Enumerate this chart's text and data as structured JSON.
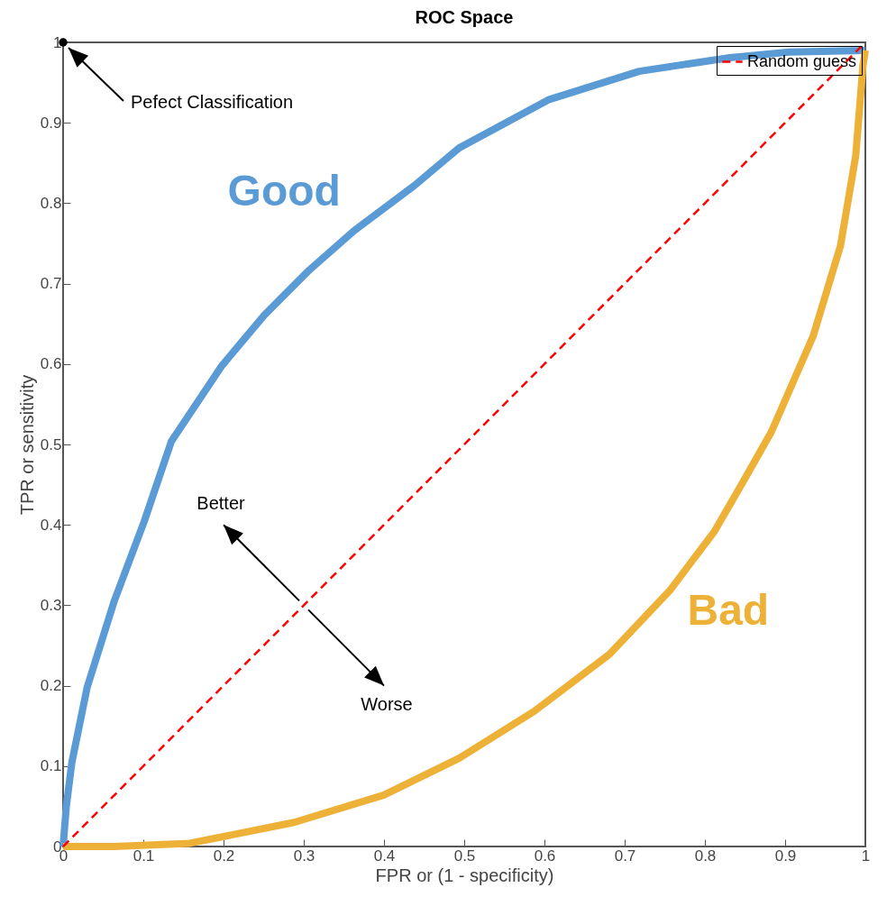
{
  "chart_data": {
    "type": "line",
    "title": "ROC Space",
    "xlabel": "FPR or (1 - specificity)",
    "ylabel": "TPR or sensitivity",
    "xlim": [
      0,
      1
    ],
    "ylim": [
      0,
      1
    ],
    "xticks": [
      0,
      0.1,
      0.2,
      0.3,
      0.4,
      0.5,
      0.6,
      0.7,
      0.8,
      0.9,
      1
    ],
    "yticks": [
      0,
      0.1,
      0.2,
      0.3,
      0.4,
      0.5,
      0.6,
      0.7,
      0.8,
      0.9,
      1
    ],
    "grid": false,
    "legend": "top right",
    "marker": "none",
    "series": [
      {
        "name": "Good",
        "color": "#5b9bd5",
        "line_style": "solid",
        "x": [
          0,
          0.004,
          0.011,
          0.03,
          0.064,
          0.101,
          0.135,
          0.198,
          0.251,
          0.307,
          0.363,
          0.438,
          0.494,
          0.606,
          0.718,
          0.831,
          0.905,
          1
        ],
        "values": [
          0,
          0.05,
          0.105,
          0.198,
          0.306,
          0.404,
          0.504,
          0.598,
          0.661,
          0.717,
          0.766,
          0.822,
          0.869,
          0.929,
          0.964,
          0.981,
          0.988,
          0.99
        ]
      },
      {
        "name": "Bad",
        "color": "#edb138",
        "line_style": "solid",
        "x": [
          0,
          0.064,
          0.158,
          0.288,
          0.4,
          0.494,
          0.587,
          0.681,
          0.756,
          0.812,
          0.849,
          0.883,
          0.935,
          0.969,
          0.988,
          0.997,
          1
        ],
        "values": [
          0,
          0,
          0.004,
          0.03,
          0.064,
          0.11,
          0.168,
          0.239,
          0.318,
          0.392,
          0.456,
          0.516,
          0.635,
          0.747,
          0.859,
          0.971,
          0.99
        ]
      },
      {
        "name": "Random guess",
        "color": "#ff0000",
        "line_style": "dashed",
        "x": [
          0,
          1
        ],
        "values": [
          0,
          1
        ]
      },
      {
        "type": "scatter",
        "color": "#000000",
        "marker": "circle",
        "x": [
          0
        ],
        "values": [
          1
        ]
      }
    ],
    "annotations": [
      {
        "text": "Pefect Classification",
        "x": 0,
        "y": 1
      },
      "Better",
      "Worse"
    ]
  }
}
